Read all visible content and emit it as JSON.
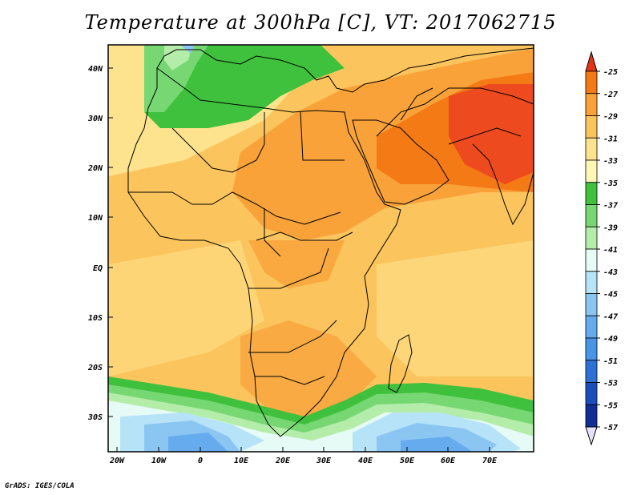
{
  "title": "Temperature at 300hPa [C], VT: 2017062715",
  "credit": "GrADS: IGES/COLA",
  "map": {
    "lat_labels": [
      "40N",
      "30N",
      "20N",
      "10N",
      "EQ",
      "10S",
      "20S",
      "30S"
    ],
    "lon_labels": [
      "20W",
      "10W",
      "0",
      "10E",
      "20E",
      "30E",
      "40E",
      "50E",
      "60E",
      "70E"
    ],
    "lon_range": [
      -23,
      80
    ],
    "lat_range": [
      -36,
      45
    ]
  },
  "colorbar": {
    "labels": [
      "-25",
      "-27",
      "-29",
      "-31",
      "-33",
      "-35",
      "-37",
      "-39",
      "-41",
      "-43",
      "-45",
      "-47",
      "-49",
      "-51",
      "-53",
      "-55",
      "-57"
    ],
    "colors": [
      "#ed4a1f",
      "#f47a16",
      "#f9a23a",
      "#fcc45c",
      "#fde38e",
      "#fef7b6",
      "#3fc13d",
      "#77d772",
      "#b4edaa",
      "#e7fbf6",
      "#b7e3f8",
      "#8bc6f2",
      "#66abee",
      "#4895e7",
      "#2d71d7",
      "#1a4fbb",
      "#122d94",
      "#0d1b6b"
    ],
    "top_cap": "#e33515",
    "bottom_cap": "#e6e1fa"
  }
}
